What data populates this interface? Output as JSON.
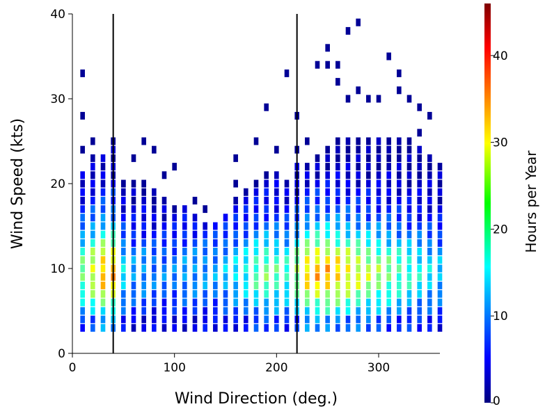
{
  "chart_data": {
    "type": "heatmap",
    "title": "",
    "xlabel": "Wind Direction (deg.)",
    "ylabel": "Wind Speed (kts)",
    "xlim": [
      0,
      360
    ],
    "ylim": [
      0,
      40
    ],
    "x_ticks": [
      0,
      100,
      200,
      300
    ],
    "y_ticks": [
      0,
      10,
      20,
      30,
      40
    ],
    "x_tick_labels": [
      "0",
      "100",
      "200",
      "300"
    ],
    "y_tick_labels": [
      "0",
      "10",
      "20",
      "30",
      "40"
    ],
    "x_bin_width": 5,
    "y_bin_width": 1,
    "grid": false,
    "colormap": "jet",
    "colorbar": {
      "label": "Hours per Year",
      "range": [
        0,
        46
      ],
      "ticks": [
        0,
        10,
        20,
        30,
        40
      ],
      "tick_labels": [
        "0",
        "10",
        "20",
        "30",
        "40"
      ]
    },
    "vertical_lines": [
      40,
      220
    ],
    "direction_bins": [
      10,
      20,
      30,
      40,
      50,
      60,
      70,
      80,
      90,
      100,
      110,
      120,
      130,
      140,
      150,
      160,
      170,
      180,
      190,
      200,
      210,
      220,
      230,
      240,
      250,
      260,
      270,
      280,
      290,
      300,
      310,
      320,
      330,
      340,
      350,
      360
    ],
    "speed_bins": [
      3,
      4,
      5,
      6,
      7,
      8,
      9,
      10,
      11,
      12,
      13,
      14,
      15,
      16,
      17,
      18,
      19,
      20,
      21,
      22,
      23,
      24,
      25
    ],
    "direction_weights": [
      0.7,
      0.85,
      1.0,
      1.0,
      0.5,
      0.4,
      0.4,
      0.35,
      0.35,
      0.35,
      0.4,
      0.4,
      0.4,
      0.4,
      0.45,
      0.5,
      0.55,
      0.65,
      0.7,
      0.65,
      0.6,
      0.75,
      0.95,
      1.0,
      1.0,
      0.95,
      0.9,
      0.85,
      0.8,
      0.75,
      0.7,
      0.65,
      0.6,
      0.55,
      0.5,
      0.45
    ],
    "speed_profile": [
      12,
      12,
      18,
      22,
      26,
      30,
      32,
      32,
      30,
      27,
      22,
      18,
      15,
      12,
      10,
      8,
      7,
      5,
      4,
      3,
      2,
      1.5,
      1
    ],
    "direction_reach_kts": [
      21,
      23,
      23,
      25,
      20,
      20,
      20,
      19,
      18,
      17,
      17,
      16,
      15,
      15,
      16,
      18,
      19,
      20,
      21,
      21,
      20,
      22,
      22,
      23,
      24,
      25,
      25,
      25,
      25,
      26,
      27,
      26,
      25,
      24,
      23,
      22
    ],
    "sparse_points": [
      [
        10,
        33
      ],
      [
        10,
        28
      ],
      [
        10,
        24
      ],
      [
        20,
        25
      ],
      [
        40,
        25
      ],
      [
        50,
        20
      ],
      [
        60,
        23
      ],
      [
        70,
        25
      ],
      [
        80,
        24
      ],
      [
        70,
        20
      ],
      [
        80,
        18
      ],
      [
        90,
        21
      ],
      [
        100,
        22
      ],
      [
        120,
        18
      ],
      [
        130,
        17
      ],
      [
        160,
        23
      ],
      [
        160,
        20
      ],
      [
        180,
        25
      ],
      [
        190,
        29
      ],
      [
        200,
        24
      ],
      [
        210,
        33
      ],
      [
        220,
        28
      ],
      [
        220,
        24
      ],
      [
        230,
        25
      ],
      [
        240,
        34
      ],
      [
        250,
        36
      ],
      [
        250,
        34
      ],
      [
        260,
        34
      ],
      [
        260,
        32
      ],
      [
        270,
        38
      ],
      [
        280,
        39
      ],
      [
        280,
        31
      ],
      [
        270,
        30
      ],
      [
        290,
        30
      ],
      [
        300,
        30
      ],
      [
        310,
        35
      ],
      [
        320,
        33
      ],
      [
        320,
        31
      ],
      [
        330,
        30
      ],
      [
        340,
        29
      ],
      [
        350,
        28
      ],
      [
        340,
        26
      ]
    ]
  }
}
